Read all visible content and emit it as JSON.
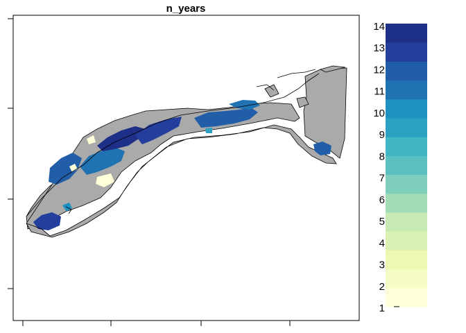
{
  "title": "n_years",
  "legend": {
    "labels": [
      "1",
      "2",
      "3",
      "4",
      "5",
      "6",
      "7",
      "8",
      "9",
      "10",
      "11",
      "12",
      "13",
      "14"
    ],
    "colors": [
      "#FFFFD9",
      "#F6FBC6",
      "#EDF8B1",
      "#DAF1B3",
      "#C7E9B4",
      "#A3DBB7",
      "#7FCDBB",
      "#5BBFC0",
      "#41B6C4",
      "#2CA1C2",
      "#1D91C0",
      "#2073B2",
      "#225EA8",
      "#233E9C",
      "#1E2F87"
    ]
  },
  "map": {
    "mask_color": "#AAAAAA",
    "outline_color": "#000000"
  }
}
